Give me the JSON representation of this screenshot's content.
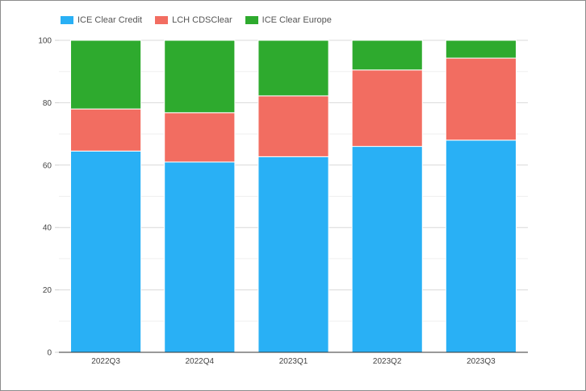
{
  "chart_data": {
    "type": "bar",
    "stacked": true,
    "categories": [
      "2022Q3",
      "2022Q4",
      "2023Q1",
      "2023Q2",
      "2023Q3"
    ],
    "series": [
      {
        "name": "ICE Clear Credit",
        "color": "#29b0f5",
        "values": [
          64.5,
          61.0,
          62.7,
          66.0,
          68.0
        ]
      },
      {
        "name": "LCH CDSClear",
        "color": "#f26d61",
        "values": [
          13.5,
          15.8,
          19.5,
          24.5,
          26.3
        ]
      },
      {
        "name": "ICE Clear Europe",
        "color": "#2eaa2e",
        "values": [
          22.0,
          23.2,
          17.8,
          9.5,
          5.7
        ]
      }
    ],
    "ylim": [
      0,
      100
    ],
    "yticks": [
      0,
      20,
      40,
      60,
      80,
      100
    ],
    "grid": true,
    "legend": "top-left"
  }
}
